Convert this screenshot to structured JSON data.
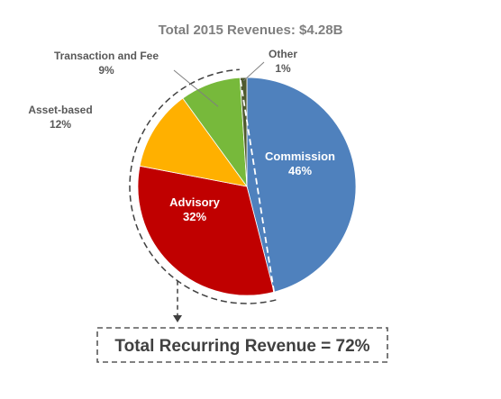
{
  "chart_data": {
    "type": "pie",
    "title": "Total 2015 Revenues: $4.28B",
    "slices": [
      {
        "name": "Commission",
        "value": 46,
        "pct_label": "46%",
        "color": "#4f81bd"
      },
      {
        "name": "Advisory",
        "value": 32,
        "pct_label": "32%",
        "color": "#c00000"
      },
      {
        "name": "Asset-based",
        "value": 12,
        "pct_label": "12%",
        "color": "#ffb000"
      },
      {
        "name": "Transaction and Fee",
        "value": 9,
        "pct_label": "9%",
        "color": "#77b93b"
      },
      {
        "name": "Other",
        "value": 1,
        "pct_label": "1%",
        "color": "#4f5a2e"
      }
    ],
    "callout": "Total Recurring Revenue = 72%"
  }
}
